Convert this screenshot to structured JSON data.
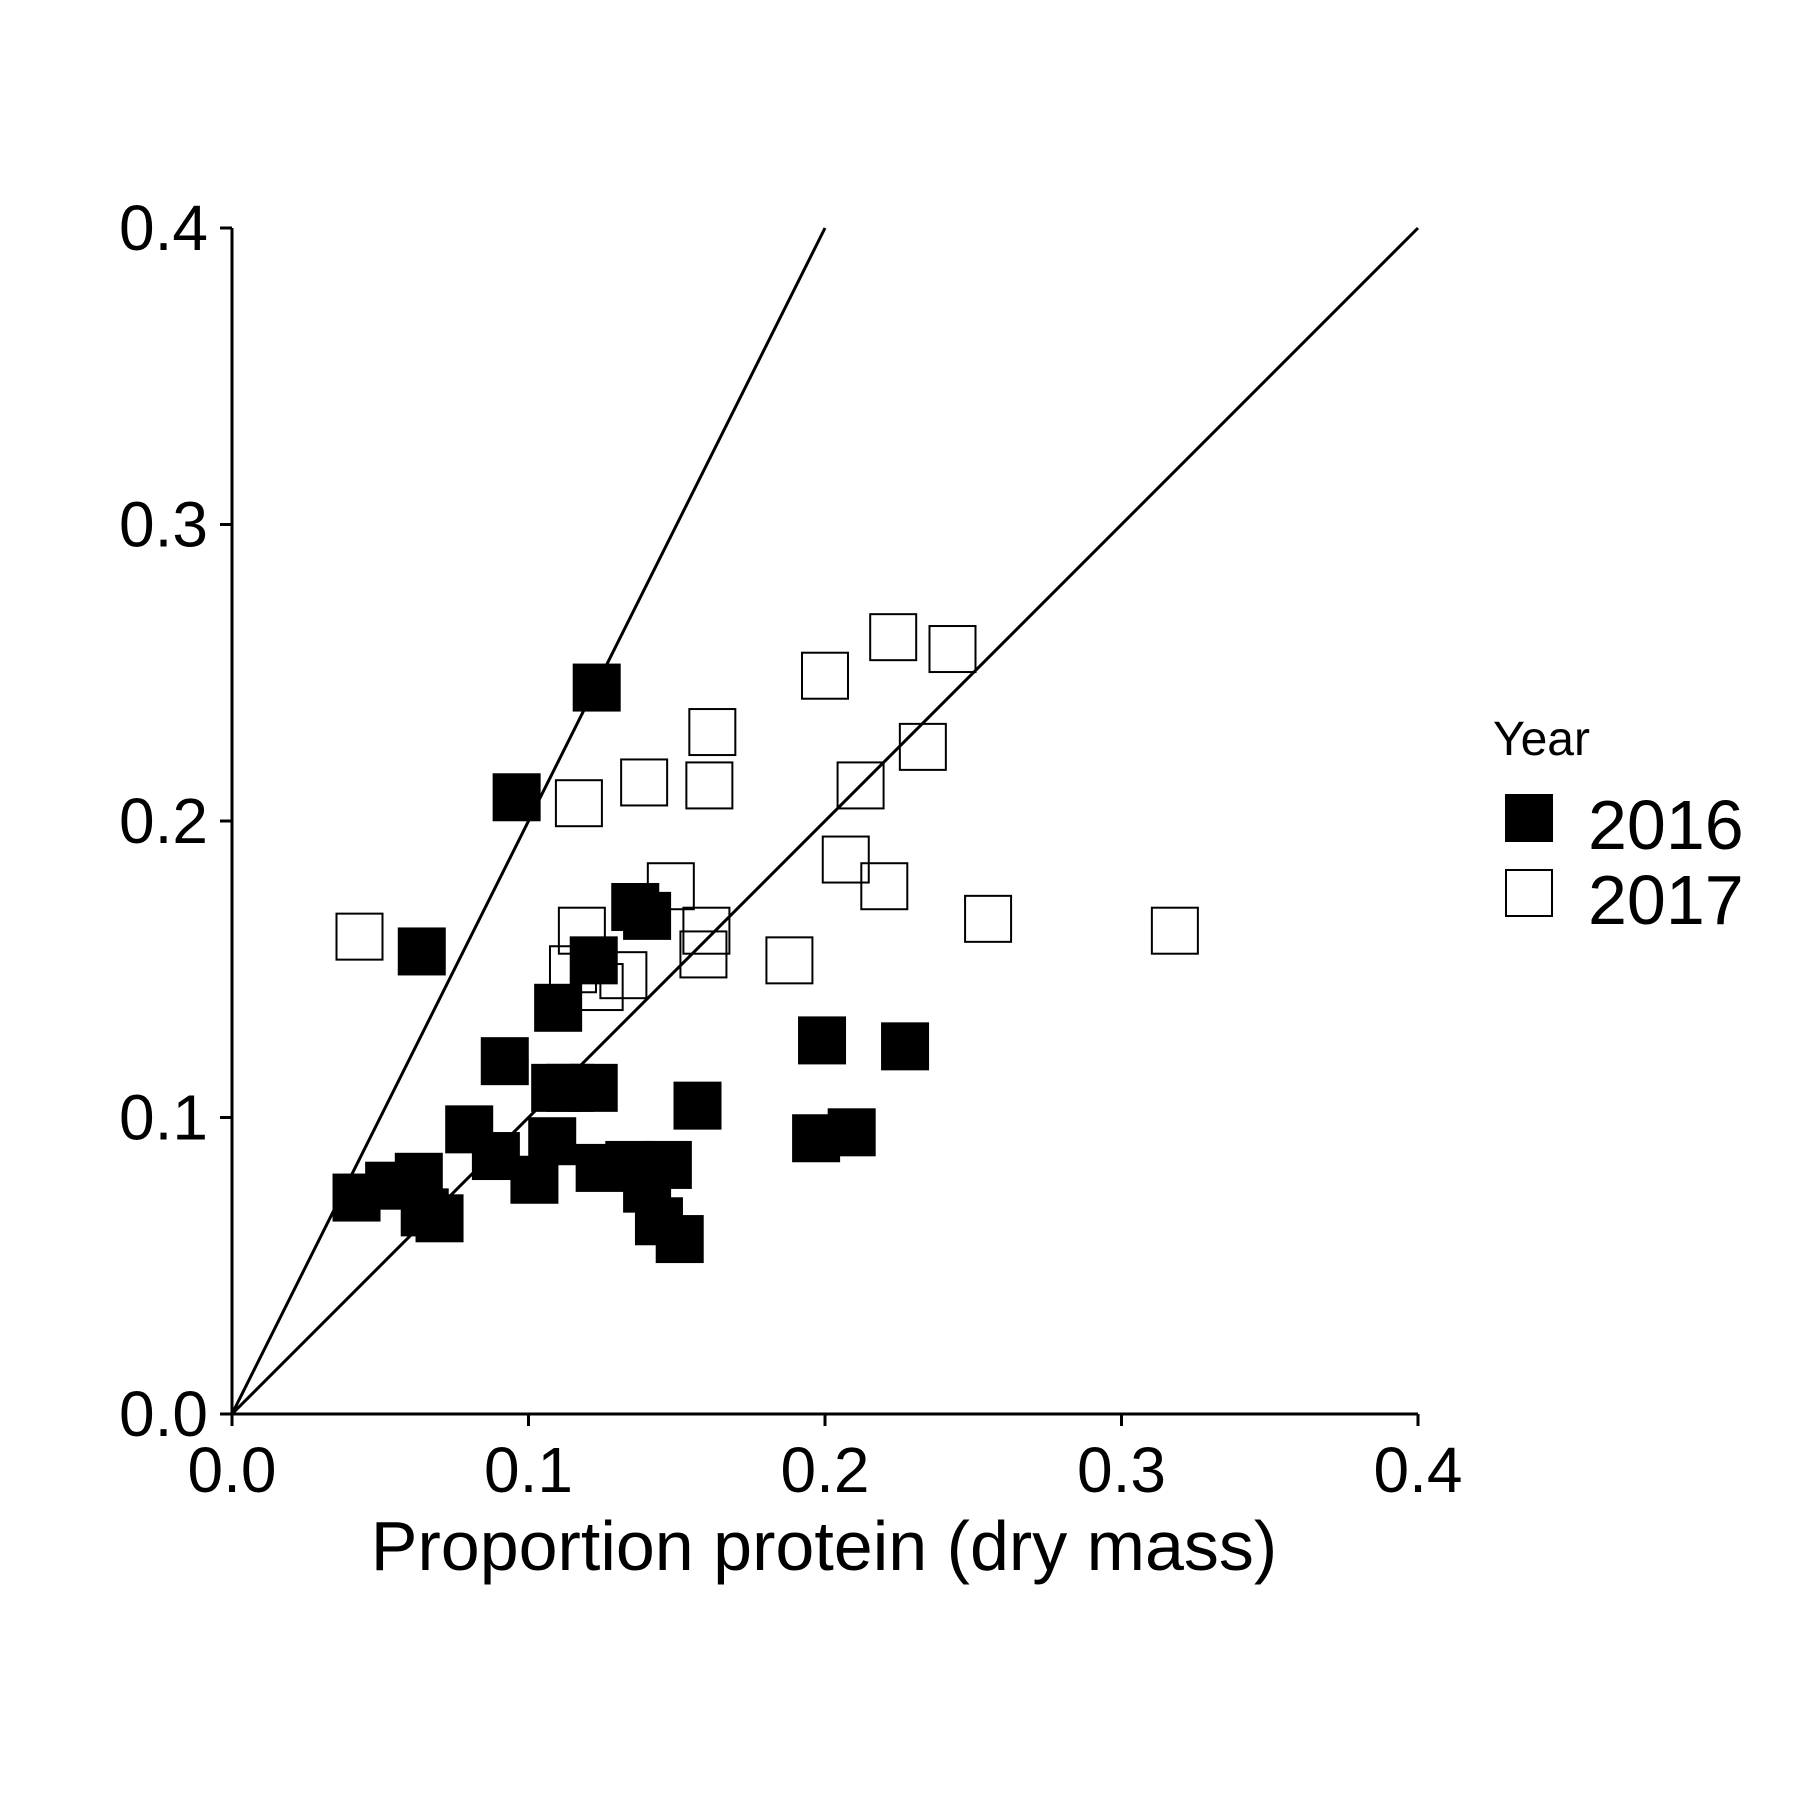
{
  "chart_data": {
    "type": "scatter",
    "title": "",
    "xlabel": "Proportion protein (dry mass)",
    "ylabel": "",
    "xlim": [
      0,
      0.4
    ],
    "ylim": [
      0,
      0.4
    ],
    "x_ticks": [
      "0.0",
      "0.1",
      "0.2",
      "0.3",
      "0.4"
    ],
    "y_ticks": [
      "0.0",
      "0.1",
      "0.2",
      "0.3",
      "0.4"
    ],
    "x_tick_values": [
      0,
      0.1,
      0.2,
      0.3,
      0.4
    ],
    "y_tick_values": [
      0,
      0.1,
      0.2,
      0.3,
      0.4
    ],
    "grid": false,
    "legend": {
      "title": "Year",
      "position": "right",
      "entries": [
        "2016",
        "2017"
      ]
    },
    "reference_lines": [
      {
        "slope": 2,
        "intercept": 0
      },
      {
        "slope": 1,
        "intercept": 0
      }
    ],
    "series": [
      {
        "name": "2016",
        "marker": "filled-square",
        "color": "#000000",
        "points": [
          [
            0.042,
            0.073
          ],
          [
            0.053,
            0.077
          ],
          [
            0.063,
            0.08
          ],
          [
            0.065,
            0.068
          ],
          [
            0.07,
            0.066
          ],
          [
            0.064,
            0.156
          ],
          [
            0.08,
            0.096
          ],
          [
            0.089,
            0.087
          ],
          [
            0.102,
            0.079
          ],
          [
            0.108,
            0.092
          ],
          [
            0.109,
            0.11
          ],
          [
            0.114,
            0.11
          ],
          [
            0.122,
            0.11
          ],
          [
            0.092,
            0.119
          ],
          [
            0.11,
            0.137
          ],
          [
            0.122,
            0.153
          ],
          [
            0.124,
            0.083
          ],
          [
            0.134,
            0.084
          ],
          [
            0.14,
            0.076
          ],
          [
            0.144,
            0.065
          ],
          [
            0.147,
            0.084
          ],
          [
            0.151,
            0.059
          ],
          [
            0.157,
            0.104
          ],
          [
            0.136,
            0.171
          ],
          [
            0.14,
            0.168
          ],
          [
            0.096,
            0.208
          ],
          [
            0.123,
            0.245
          ],
          [
            0.197,
            0.093
          ],
          [
            0.199,
            0.126
          ],
          [
            0.209,
            0.095
          ],
          [
            0.227,
            0.124
          ]
        ]
      },
      {
        "name": "2017",
        "marker": "open-square",
        "color": "#000000",
        "points": [
          [
            0.043,
            0.161
          ],
          [
            0.115,
            0.15
          ],
          [
            0.117,
            0.206
          ],
          [
            0.118,
            0.163
          ],
          [
            0.124,
            0.144
          ],
          [
            0.132,
            0.148
          ],
          [
            0.139,
            0.213
          ],
          [
            0.148,
            0.178
          ],
          [
            0.159,
            0.155
          ],
          [
            0.16,
            0.163
          ],
          [
            0.161,
            0.212
          ],
          [
            0.162,
            0.23
          ],
          [
            0.188,
            0.153
          ],
          [
            0.2,
            0.249
          ],
          [
            0.207,
            0.187
          ],
          [
            0.212,
            0.212
          ],
          [
            0.22,
            0.178
          ],
          [
            0.223,
            0.262
          ],
          [
            0.233,
            0.225
          ],
          [
            0.243,
            0.258
          ],
          [
            0.255,
            0.167
          ],
          [
            0.318,
            0.163
          ]
        ]
      }
    ]
  }
}
